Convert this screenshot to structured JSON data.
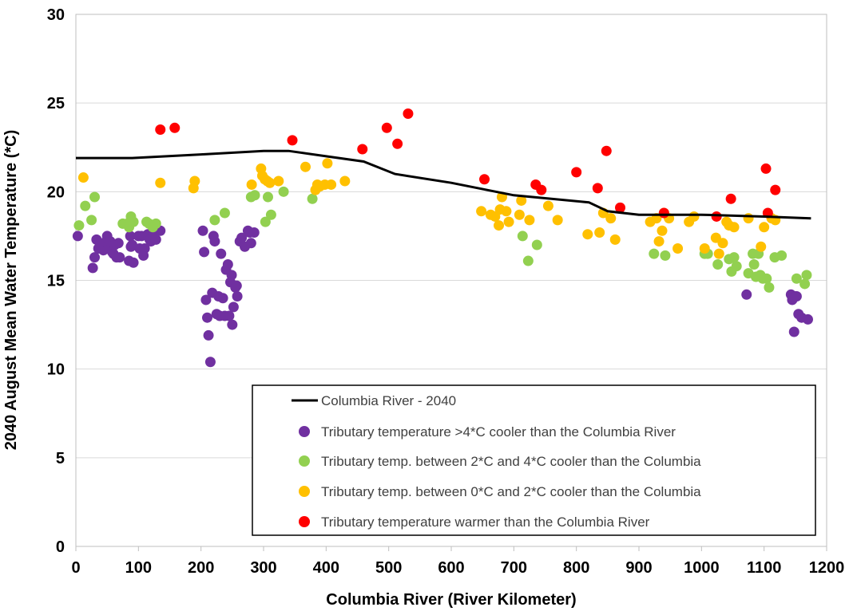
{
  "chart_data": {
    "type": "scatter",
    "title": "",
    "xlabel": "Columbia River (River Kilometer)",
    "ylabel": "2040 August Mean Water Temperature (*C)",
    "xlim": [
      0,
      1200
    ],
    "ylim": [
      0,
      30
    ],
    "xticks": [
      0,
      100,
      200,
      300,
      400,
      500,
      600,
      700,
      800,
      900,
      1000,
      1100,
      1200
    ],
    "yticks": [
      0,
      5,
      10,
      15,
      20,
      25,
      30
    ],
    "grid": "horizontal",
    "legend_position": "bottom-right",
    "line_series": {
      "name": "Columbia River - 2040",
      "color": "#000000",
      "x": [
        0,
        90,
        200,
        300,
        340,
        400,
        460,
        510,
        600,
        700,
        820,
        850,
        900,
        1000,
        1100,
        1175
      ],
      "y": [
        21.9,
        21.9,
        22.1,
        22.3,
        22.3,
        22.0,
        21.7,
        21.0,
        20.5,
        19.8,
        19.4,
        18.9,
        18.7,
        18.7,
        18.6,
        18.5
      ]
    },
    "series": [
      {
        "name": "Tributary temperature >4*C cooler than the Columbia River",
        "color": "#7030a0",
        "x": [
          3,
          27,
          30,
          33,
          36,
          40,
          44,
          48,
          50,
          52,
          55,
          58,
          60,
          62,
          65,
          68,
          70,
          85,
          87,
          88,
          90,
          92,
          100,
          102,
          105,
          108,
          110,
          115,
          118,
          120,
          123,
          125,
          128,
          135,
          203,
          205,
          208,
          210,
          212,
          215,
          218,
          220,
          222,
          225,
          228,
          230,
          232,
          235,
          238,
          240,
          243,
          245,
          247,
          249,
          250,
          252,
          255,
          257,
          258,
          262,
          265,
          270,
          275,
          278,
          280,
          285,
          1072,
          1143,
          1145,
          1148,
          1150,
          1152,
          1155,
          1160,
          1170
        ],
        "y": [
          17.5,
          15.7,
          16.3,
          17.3,
          16.8,
          17.0,
          16.7,
          17.2,
          17.5,
          17.0,
          17.2,
          16.6,
          16.5,
          17.0,
          16.3,
          17.1,
          16.3,
          16.1,
          17.5,
          16.9,
          17.0,
          16.0,
          17.5,
          16.8,
          17.5,
          16.4,
          16.8,
          17.6,
          17.3,
          17.2,
          17.7,
          17.5,
          17.3,
          17.8,
          17.8,
          16.6,
          13.9,
          12.9,
          11.9,
          10.4,
          14.3,
          17.5,
          17.2,
          13.1,
          14.1,
          13.0,
          16.5,
          14.0,
          13.0,
          15.6,
          15.9,
          13.0,
          14.9,
          15.3,
          12.5,
          13.5,
          14.6,
          14.7,
          14.1,
          17.2,
          17.4,
          16.9,
          17.8,
          17.7,
          17.1,
          17.7,
          14.2,
          14.2,
          13.9,
          12.1,
          14.1,
          14.1,
          13.1,
          12.9,
          12.8
        ]
      },
      {
        "name": "Tributary temp. between 2*C and 4*C cooler than the Columbia",
        "color": "#92d050",
        "x": [
          5,
          15,
          25,
          30,
          75,
          82,
          85,
          88,
          92,
          113,
          117,
          123,
          128,
          222,
          238,
          280,
          286,
          303,
          307,
          312,
          332,
          378,
          714,
          723,
          737,
          924,
          942,
          1005,
          1010,
          1026,
          1044,
          1048,
          1052,
          1056,
          1075,
          1082,
          1084,
          1087,
          1091,
          1094,
          1098,
          1104,
          1108,
          1117,
          1128,
          1152,
          1165,
          1168
        ],
        "y": [
          18.1,
          19.2,
          18.4,
          19.7,
          18.2,
          18.2,
          18.0,
          18.6,
          18.3,
          18.3,
          18.2,
          18.0,
          18.2,
          18.4,
          18.8,
          19.7,
          19.8,
          18.3,
          19.7,
          18.7,
          20.0,
          19.6,
          17.5,
          16.1,
          17.0,
          16.5,
          16.4,
          16.5,
          16.5,
          15.9,
          16.2,
          15.5,
          16.3,
          15.8,
          15.4,
          16.5,
          15.9,
          15.2,
          16.5,
          15.3,
          15.1,
          15.1,
          14.6,
          16.3,
          16.4,
          15.1,
          14.8,
          15.3
        ],
        "note": ""
      },
      {
        "name": "Tributary temp. between 0*C and 2*C cooler than the Columbia",
        "color": "#ffc000",
        "x": [
          12,
          135,
          188,
          190,
          281,
          296,
          298,
          302,
          306,
          310,
          324,
          367,
          383,
          386,
          390,
          398,
          402,
          408,
          430,
          648,
          663,
          670,
          676,
          678,
          681,
          688,
          692,
          709,
          712,
          725,
          755,
          770,
          818,
          837,
          843,
          855,
          862,
          918,
          928,
          932,
          937,
          940,
          948,
          962,
          980,
          988,
          1005,
          1023,
          1028,
          1034,
          1040,
          1044,
          1052,
          1075,
          1095,
          1100,
          1112,
          1118
        ],
        "y": [
          20.8,
          20.5,
          20.2,
          20.6,
          20.4,
          21.3,
          20.9,
          20.7,
          20.6,
          20.5,
          20.6,
          21.4,
          20.1,
          20.4,
          20.3,
          20.4,
          21.6,
          20.4,
          20.6,
          18.9,
          18.7,
          18.6,
          18.1,
          19.0,
          19.7,
          18.9,
          18.3,
          18.7,
          19.5,
          18.4,
          19.2,
          18.4,
          17.6,
          17.7,
          18.8,
          18.5,
          17.3,
          18.3,
          18.5,
          17.2,
          17.8,
          18.8,
          18.5,
          16.8,
          18.3,
          18.6,
          16.8,
          17.4,
          16.5,
          17.1,
          18.3,
          18.1,
          18.0,
          18.5,
          16.9,
          18.0,
          18.5,
          18.4
        ]
      },
      {
        "name": "Tributary temperature warmer than the Columbia River",
        "color": "#ff0000",
        "x": [
          135,
          158,
          346,
          458,
          497,
          514,
          531,
          653,
          735,
          744,
          800,
          834,
          848,
          870,
          940,
          1024,
          1047,
          1103,
          1106,
          1118
        ],
        "y": [
          23.5,
          23.6,
          22.9,
          22.4,
          23.6,
          22.7,
          24.4,
          20.7,
          20.4,
          20.1,
          21.1,
          20.2,
          22.3,
          19.1,
          18.8,
          18.6,
          19.6,
          21.3,
          18.8,
          20.1
        ]
      }
    ]
  }
}
